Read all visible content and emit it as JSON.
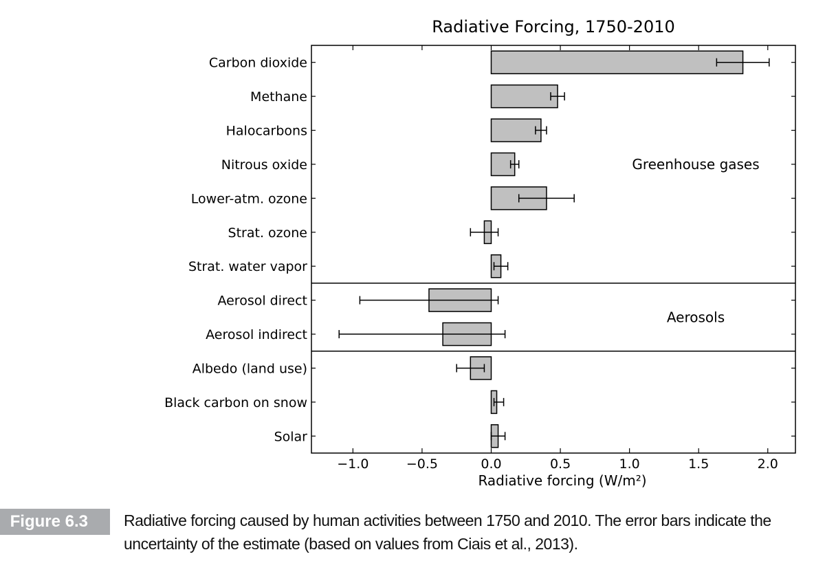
{
  "chart_data": {
    "type": "bar",
    "orientation": "horizontal",
    "title": "Radiative Forcing, 1750-2010",
    "xlabel": "Radiative forcing (W/m²)",
    "ylabel": "",
    "xlim": [
      -1.3,
      2.2
    ],
    "xticks": [
      -1.0,
      -0.5,
      0.0,
      0.5,
      1.0,
      1.5,
      2.0
    ],
    "xtick_labels": [
      "−1.0",
      "−0.5",
      "0.0",
      "0.5",
      "1.0",
      "1.5",
      "2.0"
    ],
    "grid": false,
    "categories": [
      "Carbon dioxide",
      "Methane",
      "Halocarbons",
      "Nitrous oxide",
      "Lower-atm. ozone",
      "Strat. ozone",
      "Strat. water vapor",
      "Aerosol direct",
      "Aerosol indirect",
      "Albedo (land use)",
      "Black carbon on snow",
      "Solar"
    ],
    "values": [
      1.82,
      0.48,
      0.36,
      0.17,
      0.4,
      -0.05,
      0.07,
      -0.45,
      -0.35,
      -0.15,
      0.04,
      0.05
    ],
    "error_low": [
      1.63,
      0.43,
      0.32,
      0.14,
      0.2,
      -0.15,
      0.02,
      -0.95,
      -1.1,
      -0.25,
      0.02,
      0.0
    ],
    "error_high": [
      2.01,
      0.53,
      0.4,
      0.2,
      0.6,
      0.05,
      0.12,
      0.05,
      0.1,
      -0.05,
      0.09,
      0.1
    ],
    "groups": [
      {
        "label": "Greenhouse gases",
        "start": 0,
        "end": 6
      },
      {
        "label": "Aerosols",
        "start": 7,
        "end": 8
      },
      {
        "label": "",
        "start": 9,
        "end": 11
      }
    ],
    "bar_color": "#c0c0c0"
  },
  "caption": {
    "figure_label": "Figure 6.3",
    "text": "Radiative forcing caused by human activities between 1750 and 2010. The error bars indicate the uncertainty of the estimate (based on values from Ciais et al., 2013)."
  },
  "colors": {
    "figure_label_bg": "#a9abae",
    "bar_fill": "#c0c0c0",
    "axis": "#000000"
  }
}
